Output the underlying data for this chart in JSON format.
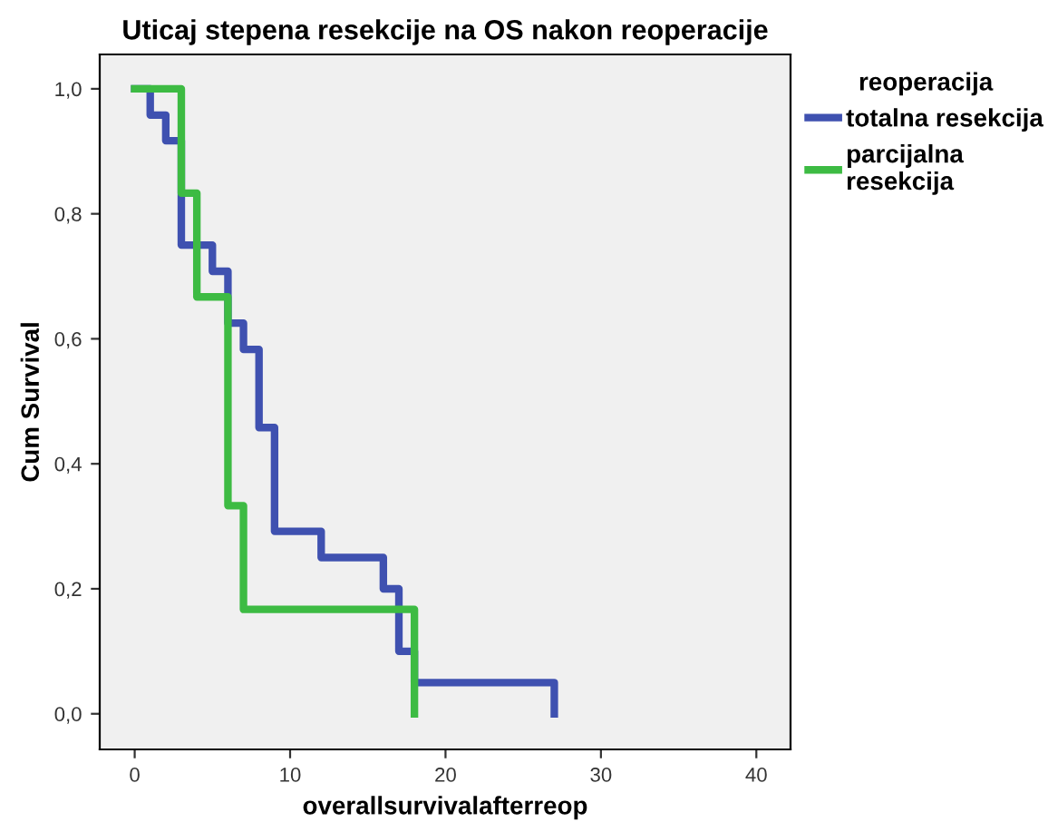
{
  "chart_data": {
    "type": "step",
    "title": "Uticaj stepena resekcije na OS nakon reoperacije",
    "xlabel": "overallsurvivalafterreop",
    "ylabel": "Cum Survival",
    "legend_title": "reoperacija",
    "legend": "right",
    "grid": false,
    "xlim": [
      -2.25,
      42.2
    ],
    "ylim": [
      -0.057,
      1.055
    ],
    "xticks": [
      0,
      10,
      20,
      30,
      40
    ],
    "yticks": [
      {
        "value": 0,
        "label": "0,0"
      },
      {
        "value": 0.2,
        "label": "0,2"
      },
      {
        "value": 0.4,
        "label": "0,4"
      },
      {
        "value": 0.6,
        "label": "0,6"
      },
      {
        "value": 0.8,
        "label": "0,8"
      },
      {
        "value": 1,
        "label": "1,0"
      }
    ],
    "series": [
      {
        "name": "totalna resekcija",
        "color": "#3f51b0",
        "x": [
          0,
          1,
          2,
          3,
          5,
          6,
          7,
          8,
          9,
          12,
          16,
          17,
          18,
          27
        ],
        "values": [
          1.0,
          0.958,
          0.917,
          0.75,
          0.708,
          0.625,
          0.583,
          0.458,
          0.292,
          0.25,
          0.2,
          0.1,
          0.05,
          0
        ]
      },
      {
        "name": "parcijalna resekcija",
        "color": "#3dbb43",
        "x": [
          0,
          3,
          4,
          6,
          7,
          18
        ],
        "values": [
          1.0,
          0.833,
          0.667,
          0.333,
          0.167,
          0
        ]
      }
    ]
  }
}
